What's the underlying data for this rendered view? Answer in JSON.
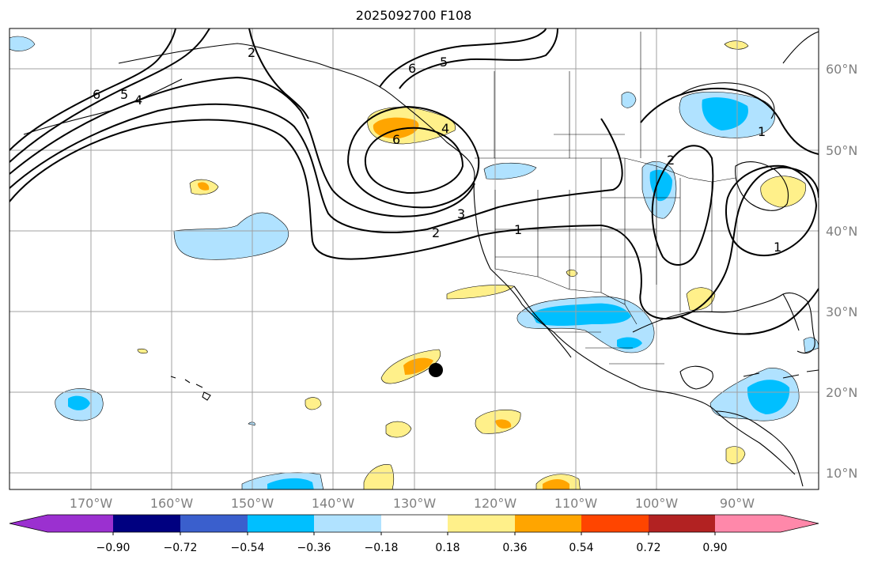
{
  "title": "2025092700 F108",
  "lat_labels": [
    "60°N",
    "50°N",
    "40°N",
    "30°N",
    "20°N",
    "10°N"
  ],
  "lon_labels": [
    "170°W",
    "160°W",
    "150°W",
    "140°W",
    "130°W",
    "120°W",
    "110°W",
    "100°W",
    "90°W"
  ],
  "colorbar": {
    "ticks": [
      "−0.90",
      "−0.72",
      "−0.54",
      "−0.36",
      "−0.18",
      "0.18",
      "0.36",
      "0.54",
      "0.72",
      "0.90"
    ],
    "colors": [
      "#9b30d0",
      "#000080",
      "#3a5fcd",
      "#00bfff",
      "#b0e2ff",
      "#ffffff",
      "#fff08a",
      "#ffa500",
      "#ff4500",
      "#b22222",
      "#ff88aa"
    ]
  },
  "contour_labels": [
    "6",
    "5",
    "4",
    "2",
    "5",
    "6",
    "4",
    "6",
    "2",
    "3",
    "1",
    "2",
    "1",
    "1"
  ],
  "colors": {
    "contour": "#000000",
    "coast": "#000000",
    "grid": "#a0a0a0"
  }
}
